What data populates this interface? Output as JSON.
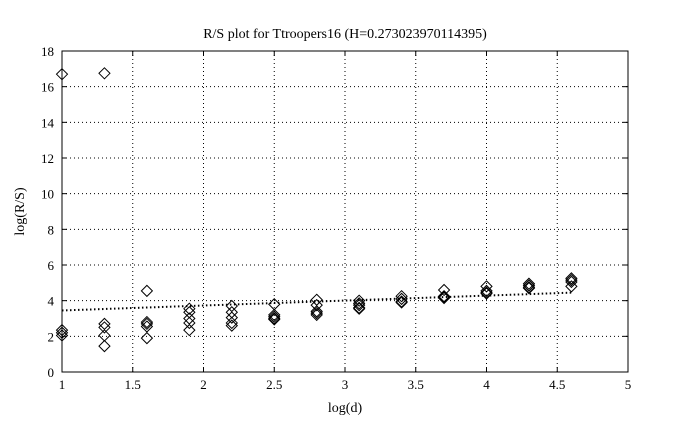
{
  "chart_data": {
    "type": "scatter",
    "title": "R/S plot for Ttroopers16 (H=0.273023970114395)",
    "xlabel": "log(d)",
    "ylabel": "log(R/S)",
    "xlim": [
      1,
      5
    ],
    "ylim": [
      0,
      18
    ],
    "xticks": [
      1,
      1.5,
      2,
      2.5,
      3,
      3.5,
      4,
      4.5,
      5
    ],
    "xtick_labels": [
      "1",
      "1.5",
      "2",
      "2.5",
      "3",
      "3.5",
      "4",
      "4.5",
      "5"
    ],
    "yticks": [
      0,
      2,
      4,
      6,
      8,
      10,
      12,
      14,
      16,
      18
    ],
    "ytick_labels": [
      "0",
      "2",
      "4",
      "6",
      "8",
      "10",
      "12",
      "14",
      "16",
      "18"
    ],
    "grid": true,
    "marker": "diamond",
    "series": [
      {
        "marker": "diamond",
        "points": [
          [
            1.0,
            16.7
          ],
          [
            1.0,
            2.35
          ],
          [
            1.0,
            2.2
          ],
          [
            1.0,
            2.05
          ],
          [
            1.3,
            16.75
          ],
          [
            1.3,
            2.7
          ],
          [
            1.3,
            2.5
          ],
          [
            1.3,
            2.05
          ],
          [
            1.3,
            1.45
          ],
          [
            1.6,
            4.55
          ],
          [
            1.6,
            2.8
          ],
          [
            1.6,
            2.7
          ],
          [
            1.6,
            2.55
          ],
          [
            1.6,
            1.9
          ],
          [
            1.9,
            3.55
          ],
          [
            1.9,
            3.35
          ],
          [
            1.9,
            3.0
          ],
          [
            1.9,
            2.75
          ],
          [
            1.9,
            2.35
          ],
          [
            2.2,
            3.7
          ],
          [
            2.2,
            3.35
          ],
          [
            2.2,
            3.05
          ],
          [
            2.2,
            2.75
          ],
          [
            2.2,
            2.6
          ],
          [
            2.5,
            3.8
          ],
          [
            2.5,
            3.2
          ],
          [
            2.5,
            3.1
          ],
          [
            2.5,
            3.0
          ],
          [
            2.5,
            2.95
          ],
          [
            2.8,
            4.05
          ],
          [
            2.8,
            3.75
          ],
          [
            2.8,
            3.4
          ],
          [
            2.8,
            3.3
          ],
          [
            2.8,
            3.2
          ],
          [
            3.1,
            4.0
          ],
          [
            3.1,
            3.85
          ],
          [
            3.1,
            3.75
          ],
          [
            3.1,
            3.6
          ],
          [
            3.1,
            3.55
          ],
          [
            3.4,
            4.25
          ],
          [
            3.4,
            4.1
          ],
          [
            3.4,
            3.95
          ],
          [
            3.4,
            3.9
          ],
          [
            3.7,
            4.6
          ],
          [
            3.7,
            4.25
          ],
          [
            3.7,
            4.2
          ],
          [
            3.7,
            4.15
          ],
          [
            4.0,
            4.8
          ],
          [
            4.0,
            4.55
          ],
          [
            4.0,
            4.45
          ],
          [
            4.0,
            4.4
          ],
          [
            4.3,
            4.95
          ],
          [
            4.3,
            4.85
          ],
          [
            4.3,
            4.75
          ],
          [
            4.3,
            4.7
          ],
          [
            4.6,
            5.25
          ],
          [
            4.6,
            5.15
          ],
          [
            4.6,
            5.05
          ],
          [
            4.6,
            4.8
          ]
        ]
      },
      {
        "type": "line",
        "style": "dotted",
        "x": [
          1.0,
          4.6
        ],
        "y": [
          3.45,
          4.45
        ]
      }
    ]
  }
}
